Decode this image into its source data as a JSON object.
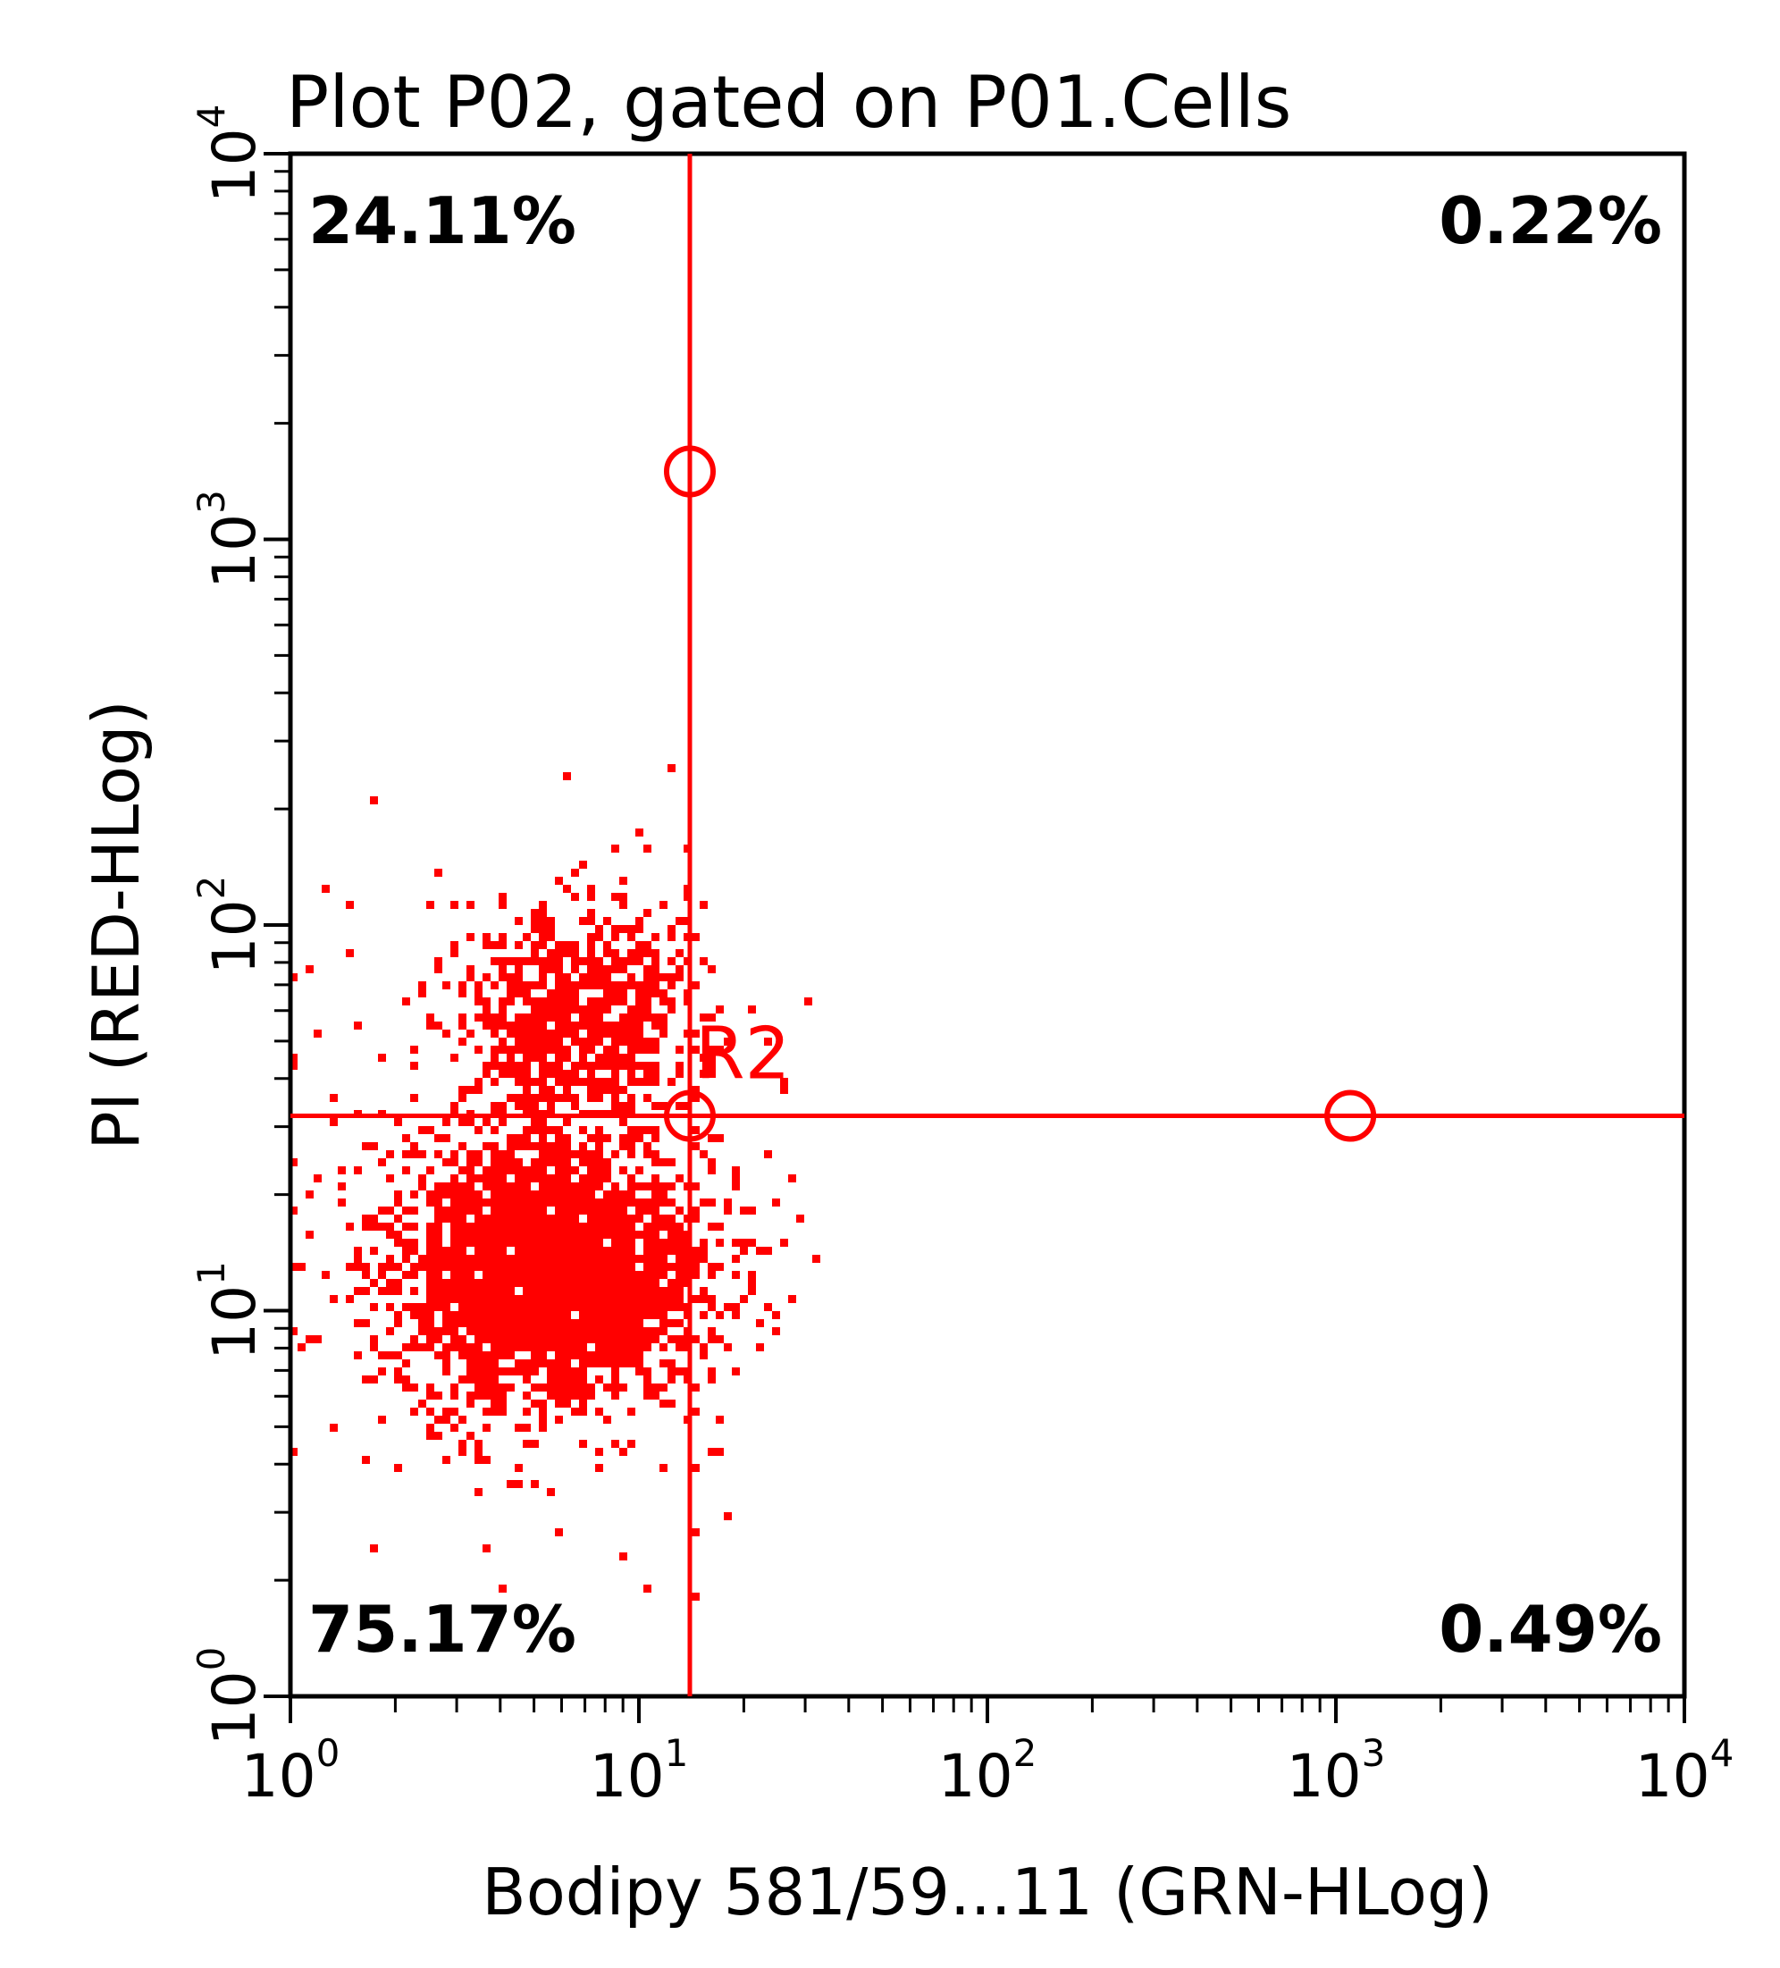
{
  "chart_data": {
    "type": "scatter",
    "title": "Plot P02, gated on P01.Cells",
    "xlabel": "Bodipy 581/59...11 (GRN-HLog)",
    "ylabel": "PI (RED-HLog)",
    "x_scale": "log",
    "y_scale": "log",
    "xlim": [
      1,
      10000
    ],
    "ylim": [
      1,
      10000
    ],
    "x_ticks": [
      {
        "base": "10",
        "exp": "0",
        "value": 1
      },
      {
        "base": "10",
        "exp": "1",
        "value": 10
      },
      {
        "base": "10",
        "exp": "2",
        "value": 100
      },
      {
        "base": "10",
        "exp": "3",
        "value": 1000
      },
      {
        "base": "10",
        "exp": "4",
        "value": 10000
      }
    ],
    "y_ticks": [
      {
        "base": "10",
        "exp": "0",
        "value": 1
      },
      {
        "base": "10",
        "exp": "1",
        "value": 10
      },
      {
        "base": "10",
        "exp": "2",
        "value": 100
      },
      {
        "base": "10",
        "exp": "3",
        "value": 1000
      },
      {
        "base": "10",
        "exp": "4",
        "value": 10000
      }
    ],
    "gate": {
      "label": "R2",
      "x_threshold": 14,
      "y_threshold": 32,
      "handles": [
        {
          "x": 14,
          "y": 1500
        },
        {
          "x": 14,
          "y": 32
        },
        {
          "x": 1100,
          "y": 32
        }
      ],
      "color": "#ff0000"
    },
    "quadrants": {
      "upper_left": "24.11%",
      "upper_right": "0.22%",
      "lower_left": "75.17%",
      "lower_right": "0.49%"
    },
    "populations": [
      {
        "name": "lower cluster",
        "x_center": 5.5,
        "y_center": 13,
        "x_spread_log10": 0.22,
        "y_spread_log10": 0.17,
        "count": 2600
      },
      {
        "name": "upper cluster",
        "x_center": 6.5,
        "y_center": 60,
        "x_spread_log10": 0.16,
        "y_spread_log10": 0.14,
        "count": 700
      },
      {
        "name": "background",
        "x_center": 5,
        "y_center": 20,
        "x_spread_log10": 0.35,
        "y_spread_log10": 0.42,
        "count": 260
      }
    ],
    "point_color": "#ff0000",
    "grid": false,
    "legend": "none"
  }
}
